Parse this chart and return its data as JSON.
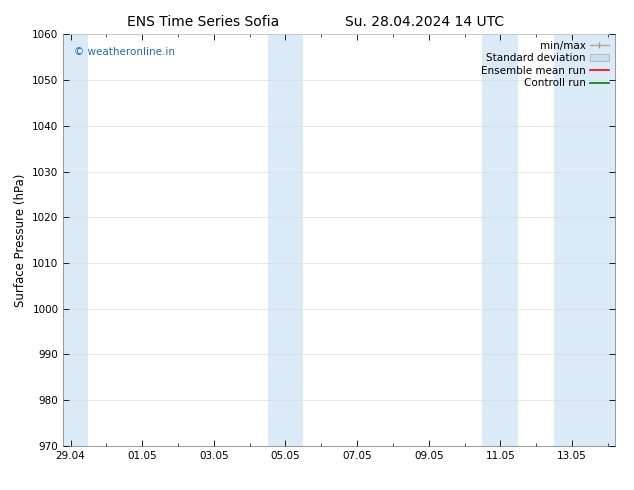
{
  "title_left": "ENS Time Series Sofia",
  "title_right": "Su. 28.04.2024 14 UTC",
  "ylabel": "Surface Pressure (hPa)",
  "ylim": [
    970,
    1060
  ],
  "yticks": [
    970,
    980,
    990,
    1000,
    1010,
    1020,
    1030,
    1040,
    1050,
    1060
  ],
  "xtick_labels": [
    "29.04",
    "01.05",
    "03.05",
    "05.05",
    "07.05",
    "09.05",
    "11.05",
    "13.05"
  ],
  "xtick_positions": [
    0,
    2,
    4,
    6,
    8,
    10,
    12,
    14
  ],
  "xlim": [
    -0.2,
    15.2
  ],
  "shaded_regions": [
    {
      "start": -0.2,
      "end": 0.5
    },
    {
      "start": 5.5,
      "end": 6.5
    },
    {
      "start": 11.5,
      "end": 12.5
    },
    {
      "start": 13.5,
      "end": 15.2
    }
  ],
  "shade_color": "#daeaf6",
  "watermark_text": "© weatheronline.in",
  "watermark_color": "#1e6bbf",
  "bg_color": "#ffffff",
  "grid_color": "#dddddd",
  "title_fontsize": 10,
  "tick_fontsize": 7.5,
  "legend_fontsize": 7.5,
  "ylabel_fontsize": 8.5
}
